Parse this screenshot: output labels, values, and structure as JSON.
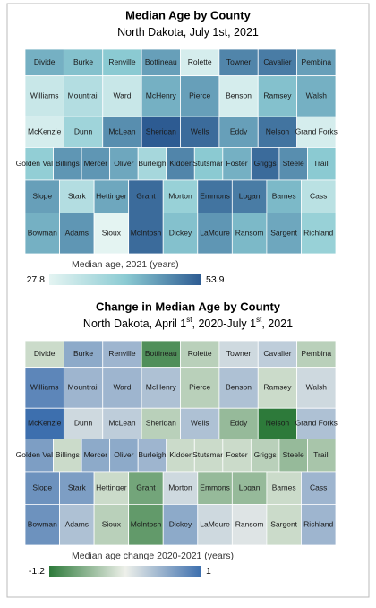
{
  "maps": [
    {
      "title": "Median Age by County",
      "subtitle": [
        "North Dakota, July 1st, 2021"
      ],
      "legend": {
        "label": "Median age, 2021 (years)",
        "min": 27.8,
        "max": 53.9,
        "colors": [
          "#e4f4f2",
          "#8ccbd3",
          "#2d5b92"
        ]
      },
      "counties": [
        {
          "name": "Divide",
          "value": 44
        },
        {
          "name": "Burke",
          "value": 42
        },
        {
          "name": "Renville",
          "value": 41
        },
        {
          "name": "Bottineau",
          "value": 46
        },
        {
          "name": "Rolette",
          "value": 30
        },
        {
          "name": "Towner",
          "value": 49
        },
        {
          "name": "Cavalier",
          "value": 50
        },
        {
          "name": "Pembina",
          "value": 46
        },
        {
          "name": "Williams",
          "value": 32
        },
        {
          "name": "Mountrail",
          "value": 35
        },
        {
          "name": "Ward",
          "value": 32
        },
        {
          "name": "McHenry",
          "value": 44
        },
        {
          "name": "Pierce",
          "value": 46
        },
        {
          "name": "Benson",
          "value": 30
        },
        {
          "name": "Ramsey",
          "value": 42
        },
        {
          "name": "Walsh",
          "value": 44
        },
        {
          "name": "McKenzie",
          "value": 30
        },
        {
          "name": "Dunn",
          "value": 38
        },
        {
          "name": "McLean",
          "value": 48
        },
        {
          "name": "Sheridan",
          "value": 53.9
        },
        {
          "name": "Wells",
          "value": 52
        },
        {
          "name": "Eddy",
          "value": 46
        },
        {
          "name": "Nelson",
          "value": 51
        },
        {
          "name": "Grand Forks",
          "value": 30
        },
        {
          "name": "Golden Valley",
          "value": 40
        },
        {
          "name": "Billings",
          "value": 47
        },
        {
          "name": "Mercer",
          "value": 47
        },
        {
          "name": "Oliver",
          "value": 45
        },
        {
          "name": "Burleigh",
          "value": 37
        },
        {
          "name": "Kidder",
          "value": 49
        },
        {
          "name": "Stutsman",
          "value": 41
        },
        {
          "name": "Foster",
          "value": 44
        },
        {
          "name": "Griggs",
          "value": 52
        },
        {
          "name": "Steele",
          "value": 48
        },
        {
          "name": "Traill",
          "value": 41
        },
        {
          "name": "Slope",
          "value": 46
        },
        {
          "name": "Stark",
          "value": 35
        },
        {
          "name": "Hettinger",
          "value": 45
        },
        {
          "name": "Grant",
          "value": 52
        },
        {
          "name": "Morton",
          "value": 39
        },
        {
          "name": "Emmons",
          "value": 51
        },
        {
          "name": "Logan",
          "value": 50
        },
        {
          "name": "Barnes",
          "value": 43
        },
        {
          "name": "Cass",
          "value": 34
        },
        {
          "name": "Bowman",
          "value": 44
        },
        {
          "name": "Adams",
          "value": 47
        },
        {
          "name": "Sioux",
          "value": 27.8
        },
        {
          "name": "McIntosh",
          "value": 52
        },
        {
          "name": "Dickey",
          "value": 42
        },
        {
          "name": "LaMoure",
          "value": 47
        },
        {
          "name": "Ransom",
          "value": 43
        },
        {
          "name": "Sargent",
          "value": 45
        },
        {
          "name": "Richland",
          "value": 39
        }
      ]
    },
    {
      "title": "Change in Median Age by County",
      "subtitle": [
        "North Dakota, April 1",
        "st",
        ", 2020-July 1",
        "st",
        ", 2021"
      ],
      "legend": {
        "label": "Median age change 2020-2021 (years)",
        "min": -1.2,
        "max": 1.0,
        "colors": [
          "#2d7a3a",
          "#eef0ea",
          "#3d6fae"
        ]
      },
      "counties": [
        {
          "name": "Divide",
          "value": -0.3
        },
        {
          "name": "Burke",
          "value": 0.5
        },
        {
          "name": "Renville",
          "value": 0.4
        },
        {
          "name": "Bottineau",
          "value": -1.0
        },
        {
          "name": "Rolette",
          "value": -0.4
        },
        {
          "name": "Towner",
          "value": 0.1
        },
        {
          "name": "Cavalier",
          "value": 0.2
        },
        {
          "name": "Pembina",
          "value": -0.4
        },
        {
          "name": "Williams",
          "value": 0.8
        },
        {
          "name": "Mountrail",
          "value": 0.4
        },
        {
          "name": "Ward",
          "value": 0.4
        },
        {
          "name": "McHenry",
          "value": 0.3
        },
        {
          "name": "Pierce",
          "value": -0.4
        },
        {
          "name": "Benson",
          "value": 0.3
        },
        {
          "name": "Ramsey",
          "value": -0.3
        },
        {
          "name": "Walsh",
          "value": 0.1
        },
        {
          "name": "McKenzie",
          "value": 1.0
        },
        {
          "name": "Dunn",
          "value": 0.1
        },
        {
          "name": "McLean",
          "value": 0.2
        },
        {
          "name": "Sheridan",
          "value": -0.4
        },
        {
          "name": "Wells",
          "value": 0.3
        },
        {
          "name": "Eddy",
          "value": -0.6
        },
        {
          "name": "Nelson",
          "value": -1.2
        },
        {
          "name": "Grand Forks",
          "value": 0.3
        },
        {
          "name": "Golden Valley",
          "value": 0.6
        },
        {
          "name": "Billings",
          "value": -0.3
        },
        {
          "name": "Mercer",
          "value": 0.5
        },
        {
          "name": "Oliver",
          "value": 0.5
        },
        {
          "name": "Burleigh",
          "value": 0.4
        },
        {
          "name": "Kidder",
          "value": -0.3
        },
        {
          "name": "Stutsman",
          "value": -0.3
        },
        {
          "name": "Foster",
          "value": -0.3
        },
        {
          "name": "Griggs",
          "value": -0.4
        },
        {
          "name": "Steele",
          "value": -0.6
        },
        {
          "name": "Traill",
          "value": -0.5
        },
        {
          "name": "Slope",
          "value": 0.7
        },
        {
          "name": "Stark",
          "value": 0.6
        },
        {
          "name": "Hettinger",
          "value": -0.3
        },
        {
          "name": "Grant",
          "value": -0.8
        },
        {
          "name": "Morton",
          "value": 0.1
        },
        {
          "name": "Emmons",
          "value": -0.6
        },
        {
          "name": "Logan",
          "value": -0.6
        },
        {
          "name": "Barnes",
          "value": -0.3
        },
        {
          "name": "Cass",
          "value": 0.4
        },
        {
          "name": "Bowman",
          "value": 0.7
        },
        {
          "name": "Adams",
          "value": 0.3
        },
        {
          "name": "Sioux",
          "value": -0.4
        },
        {
          "name": "McIntosh",
          "value": -0.9
        },
        {
          "name": "Dickey",
          "value": 0.5
        },
        {
          "name": "LaMoure",
          "value": 0.1
        },
        {
          "name": "Ransom",
          "value": 0.0
        },
        {
          "name": "Sargent",
          "value": -0.3
        },
        {
          "name": "Richland",
          "value": 0.4
        }
      ]
    }
  ]
}
